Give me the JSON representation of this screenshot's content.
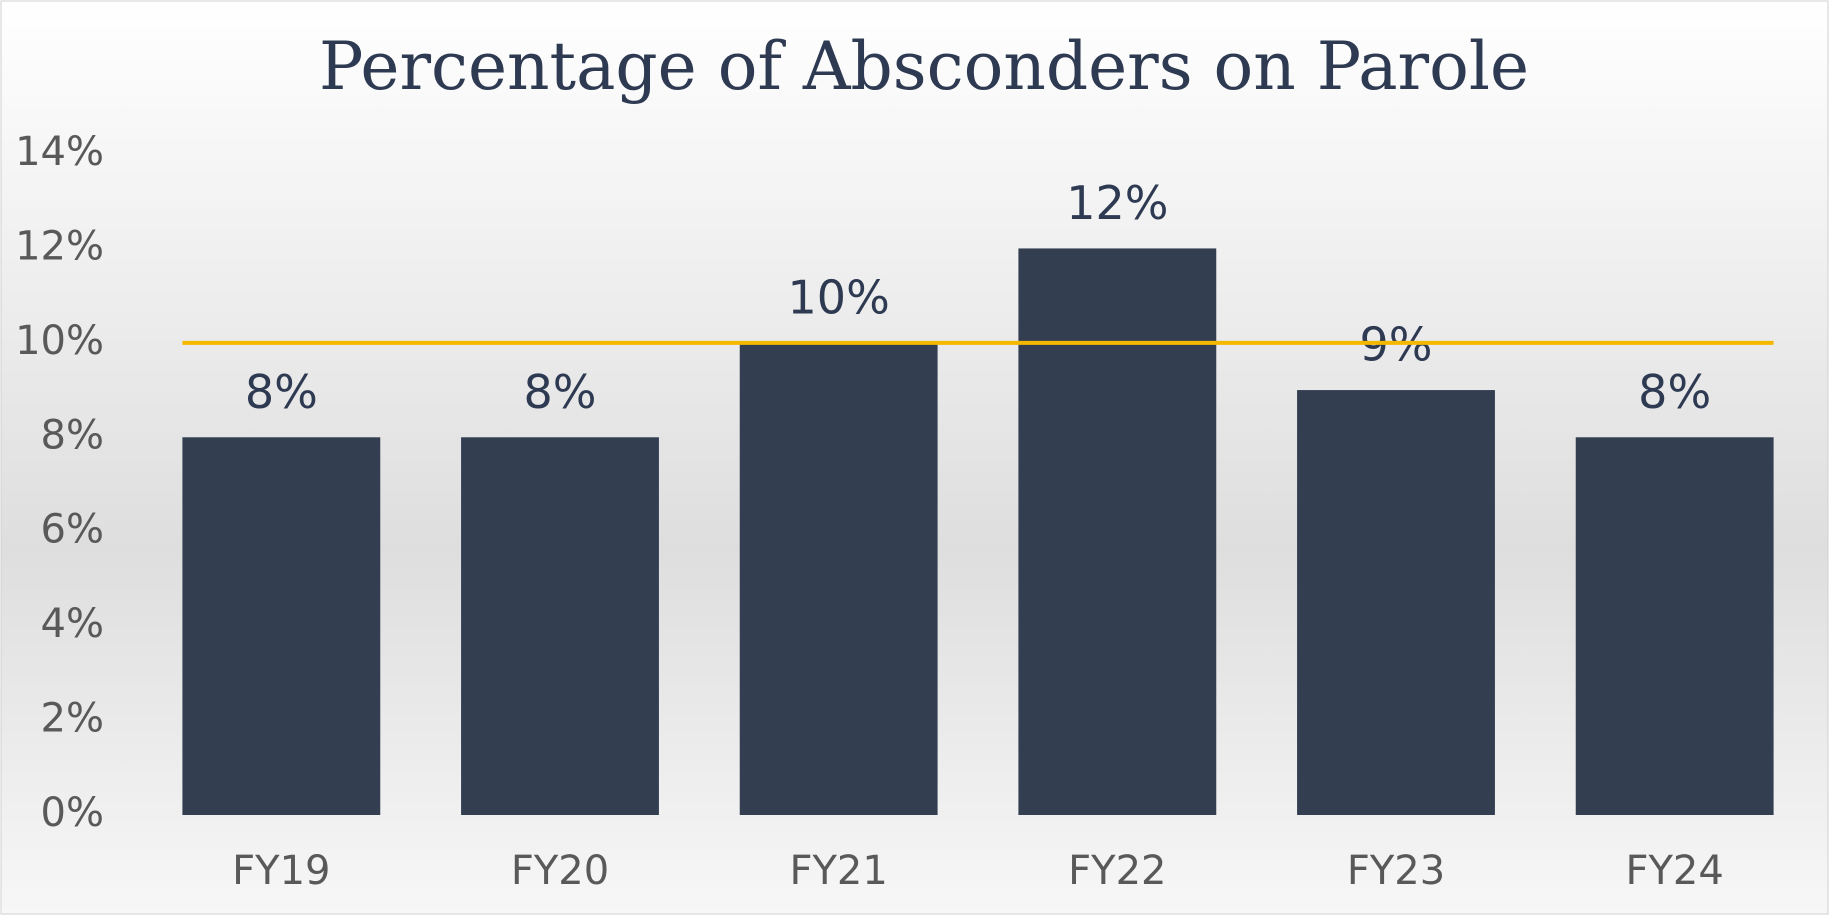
{
  "chart_data": {
    "type": "bar",
    "title": "Percentage of Absconders on Parole",
    "categories": [
      "FY19",
      "FY20",
      "FY21",
      "FY22",
      "FY23",
      "FY24"
    ],
    "values": [
      8,
      8,
      10,
      12,
      9,
      8
    ],
    "value_labels": [
      "8%",
      "8%",
      "10%",
      "12%",
      "9%",
      "8%"
    ],
    "color": "#333e51",
    "reference_line": {
      "value": 10,
      "color": "#f5b800"
    },
    "ylim": [
      0,
      14
    ],
    "yticks": [
      {
        "value": 0,
        "label": "0%"
      },
      {
        "value": 2,
        "label": "2%"
      },
      {
        "value": 4,
        "label": "4%"
      },
      {
        "value": 6,
        "label": "6%"
      },
      {
        "value": 8,
        "label": "8%"
      },
      {
        "value": 10,
        "label": "10%"
      },
      {
        "value": 12,
        "label": "12%"
      },
      {
        "value": 14,
        "label": "14%"
      }
    ],
    "grid": false
  }
}
